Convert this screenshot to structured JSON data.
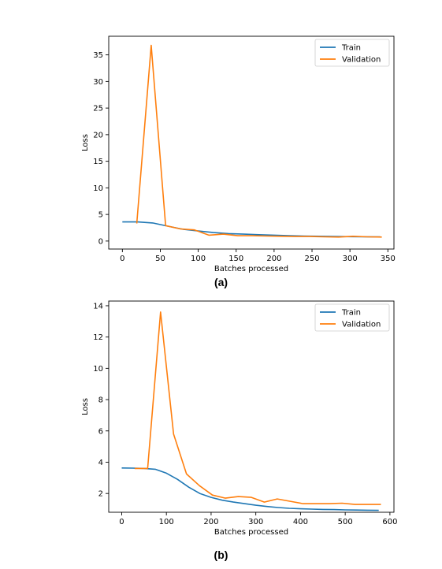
{
  "captions": {
    "a": "(a)",
    "b": "(b)"
  },
  "colors": {
    "train": "#1f77b4",
    "validation": "#ff7f0e",
    "axis": "#000000"
  },
  "chart_data": [
    {
      "type": "line",
      "panel": "a",
      "title": "",
      "xlabel": "Batches processed",
      "ylabel": "Loss",
      "xlim": [
        -18,
        358
      ],
      "ylim": [
        -1.5,
        38.5
      ],
      "xticks": [
        0,
        50,
        100,
        150,
        200,
        250,
        300,
        350
      ],
      "yticks": [
        0,
        5,
        10,
        15,
        20,
        25,
        30,
        35
      ],
      "grid": false,
      "legend": "top-right",
      "series": [
        {
          "name": "Train",
          "color": "#1f77b4",
          "x": [
            0,
            20,
            40,
            60,
            80,
            100,
            120,
            140,
            160,
            180,
            200,
            220,
            240,
            260,
            280,
            300,
            320,
            340
          ],
          "y": [
            3.6,
            3.6,
            3.4,
            2.8,
            2.2,
            1.9,
            1.6,
            1.4,
            1.3,
            1.2,
            1.1,
            1.0,
            0.95,
            0.9,
            0.85,
            0.82,
            0.8,
            0.78
          ]
        },
        {
          "name": "Validation",
          "color": "#ff7f0e",
          "x": [
            19,
            38,
            57,
            76,
            95,
            114,
            133,
            152,
            171,
            190,
            209,
            228,
            247,
            266,
            285,
            304,
            323,
            342
          ],
          "y": [
            3.3,
            36.8,
            2.9,
            2.3,
            2.1,
            1.1,
            1.3,
            1.0,
            1.0,
            0.95,
            0.9,
            0.85,
            0.85,
            0.8,
            0.75,
            0.9,
            0.8,
            0.75
          ]
        }
      ]
    },
    {
      "type": "line",
      "panel": "b",
      "title": "",
      "xlabel": "Batches processed",
      "ylabel": "Loss",
      "xlim": [
        -29,
        609
      ],
      "ylim": [
        0.8,
        14.3
      ],
      "xticks": [
        0,
        100,
        200,
        300,
        400,
        500,
        600
      ],
      "yticks": [
        2,
        4,
        6,
        8,
        10,
        12,
        14
      ],
      "grid": false,
      "legend": "top-right",
      "series": [
        {
          "name": "Train",
          "color": "#1f77b4",
          "x": [
            0,
            25,
            50,
            75,
            100,
            125,
            150,
            175,
            200,
            225,
            250,
            275,
            300,
            325,
            350,
            375,
            400,
            425,
            450,
            475,
            500,
            525,
            550,
            575
          ],
          "y": [
            3.63,
            3.62,
            3.6,
            3.55,
            3.3,
            2.9,
            2.4,
            2.0,
            1.75,
            1.57,
            1.45,
            1.35,
            1.25,
            1.17,
            1.1,
            1.05,
            1.02,
            1.0,
            0.98,
            0.97,
            0.95,
            0.94,
            0.93,
            0.92
          ]
        },
        {
          "name": "Validation",
          "color": "#ff7f0e",
          "x": [
            29,
            58,
            87,
            116,
            145,
            174,
            203,
            232,
            261,
            290,
            319,
            348,
            377,
            406,
            435,
            464,
            493,
            522,
            551,
            580
          ],
          "y": [
            3.6,
            3.6,
            13.6,
            5.8,
            3.25,
            2.5,
            1.9,
            1.7,
            1.8,
            1.75,
            1.45,
            1.65,
            1.5,
            1.35,
            1.35,
            1.35,
            1.38,
            1.3,
            1.3,
            1.3
          ]
        }
      ]
    }
  ]
}
